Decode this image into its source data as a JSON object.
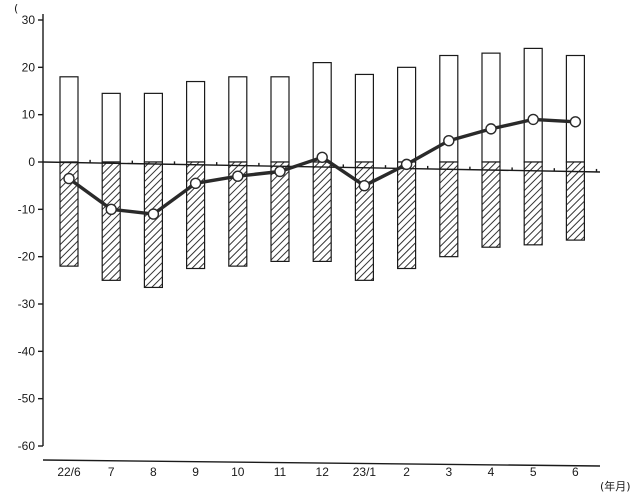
{
  "chart_data": {
    "type": "bar",
    "categories": [
      "22/6",
      "7",
      "8",
      "9",
      "10",
      "11",
      "12",
      "23/1",
      "2",
      "3",
      "4",
      "5",
      "6"
    ],
    "ylim": [
      -60,
      30
    ],
    "yticks": [
      30,
      20,
      10,
      0,
      -10,
      -20,
      -30,
      -40,
      -50,
      -60
    ],
    "x_unit_label": "(年月)",
    "y_unit_mark": "(",
    "grid": false,
    "series": [
      {
        "kind": "bar",
        "values": [
          18,
          14.5,
          14.5,
          17,
          18,
          18,
          21,
          18.5,
          20,
          22.5,
          23,
          24,
          22.5
        ]
      },
      {
        "kind": "bar",
        "values": [
          -22,
          -25,
          -26.5,
          -22.5,
          -22,
          -21,
          -21,
          -25,
          -22.5,
          -20,
          -18,
          -17.5,
          -16.5
        ]
      },
      {
        "kind": "line",
        "values": [
          -3.5,
          -10,
          -11,
          -4.5,
          -3,
          -2,
          1,
          -5,
          -0.5,
          4.5,
          7,
          9,
          8.5
        ]
      }
    ]
  }
}
